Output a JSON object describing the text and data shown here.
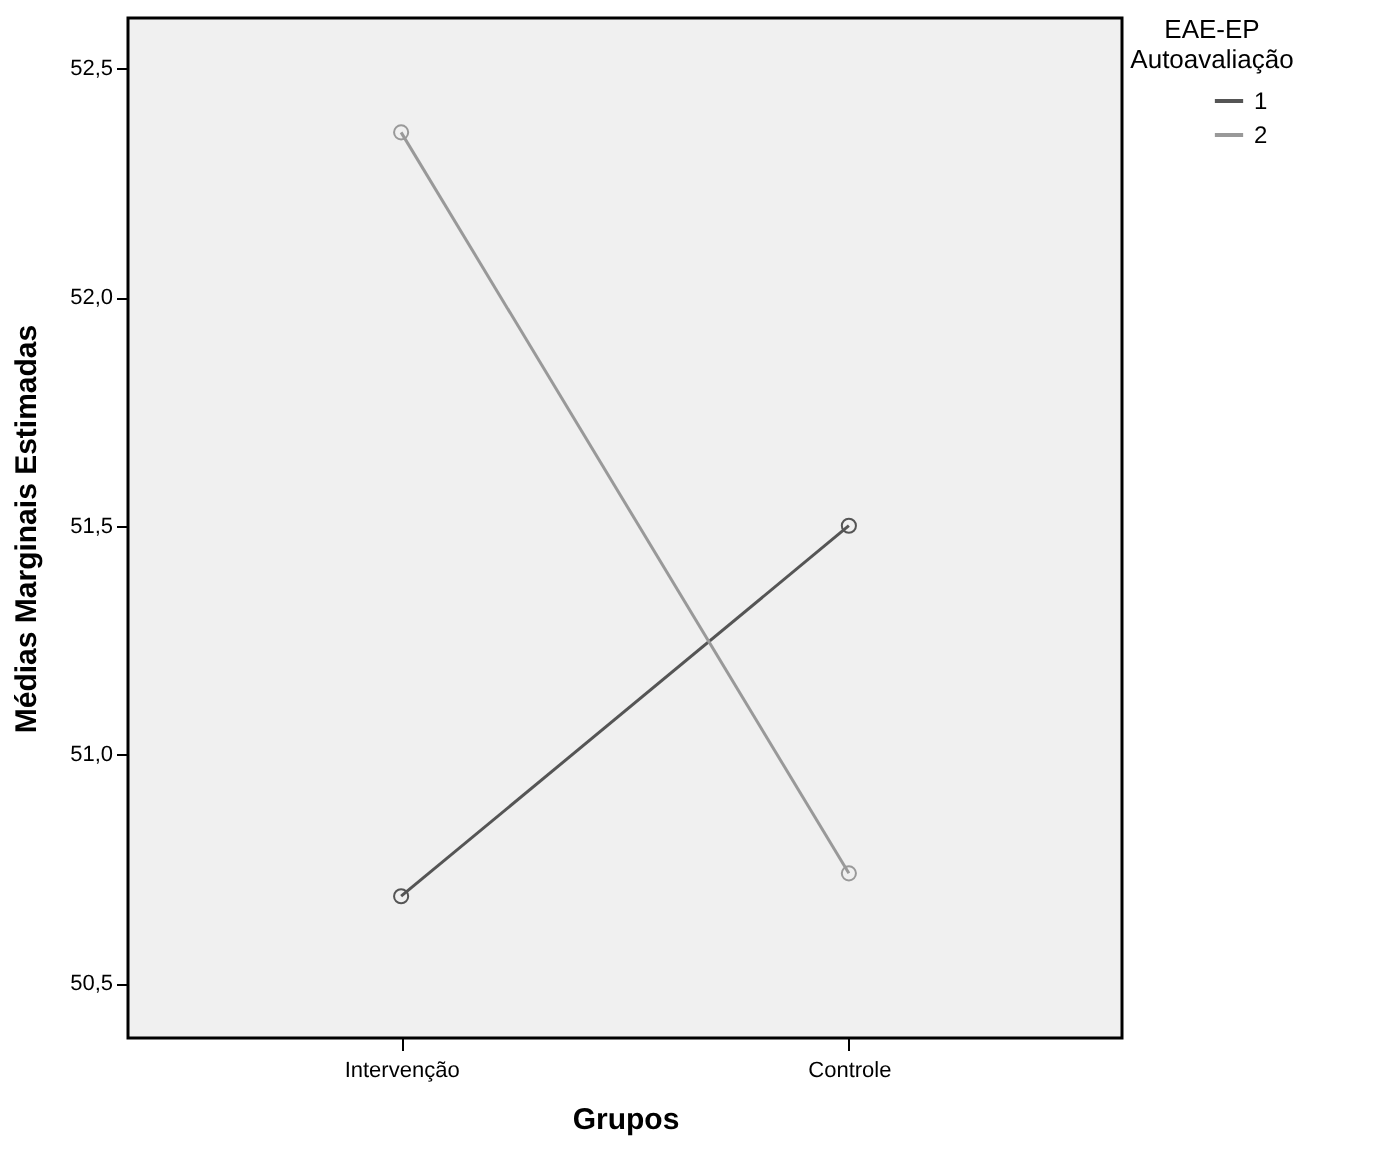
{
  "chart_data": {
    "type": "line",
    "xlabel": "Grupos",
    "ylabel": "Médias Marginais Estimadas",
    "legend_title": "EAE-EP\nAutoavaliação",
    "categories": [
      "Intervenção",
      "Controle"
    ],
    "series": [
      {
        "name": "1",
        "color": "#555555",
        "values": [
          50.69,
          51.5
        ]
      },
      {
        "name": "2",
        "color": "#999999",
        "values": [
          52.36,
          50.74
        ]
      }
    ],
    "ylim": [
      50.38,
      52.61
    ],
    "yticks": [
      {
        "value": 50.5,
        "label": "50,5"
      },
      {
        "value": 51.0,
        "label": "51,0"
      },
      {
        "value": 51.5,
        "label": "51,5"
      },
      {
        "value": 52.0,
        "label": "52,0"
      },
      {
        "value": 52.5,
        "label": "52,5"
      }
    ],
    "grid": false,
    "legend": "top right",
    "marker": "circle",
    "line_style": "solid"
  }
}
